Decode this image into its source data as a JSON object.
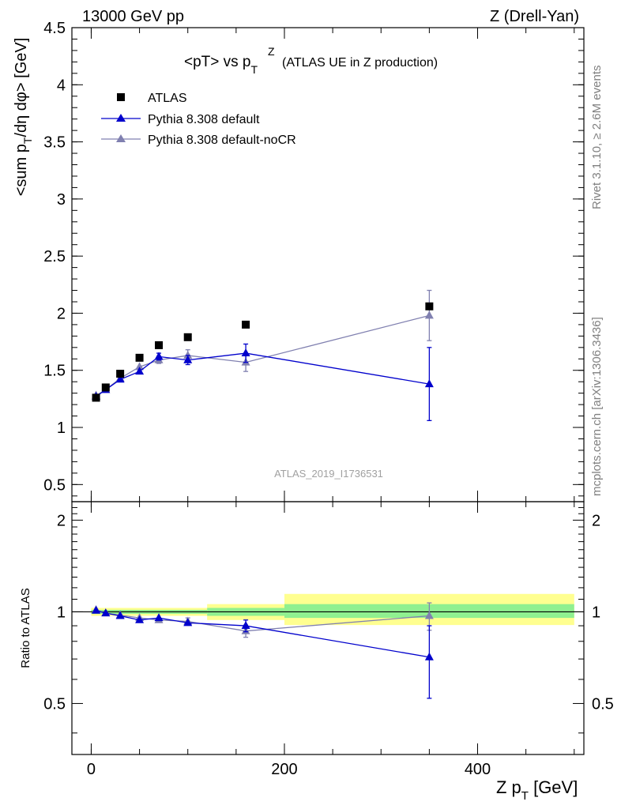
{
  "header": {
    "left": "13000 GeV pp",
    "right": "Z (Drell-Yan)"
  },
  "plot_title": {
    "main": "<pT> vs p",
    "sup": "Z",
    "sub": "T",
    "suffix": "(ATLAS UE in Z production)"
  },
  "side_labels": {
    "rivet": "Rivet 3.1.10, ≥ 2.6M events",
    "mcplots": "mcplots.cern.ch [arXiv:1306.3436]"
  },
  "watermark": "ATLAS_2019_I1736531",
  "colors": {
    "atlas": "#000000",
    "default": "#0000cc",
    "nocr": "#8080b0",
    "band_inner": "#90f090",
    "band_outer": "#ffff90"
  },
  "chart_data": [
    {
      "type": "scatter",
      "panel": "main",
      "ylabel": "<sum p_T/dη dφ> [GeV]",
      "xlim": [
        -20,
        510
      ],
      "ylim": [
        0.35,
        4.5
      ],
      "yticks": [
        0.5,
        1,
        1.5,
        2,
        2.5,
        3,
        3.5,
        4,
        4.5
      ],
      "yticklabels": [
        "0.5",
        "1",
        "1.5",
        "2",
        "2.5",
        "3",
        "3.5",
        "4",
        "4.5"
      ],
      "series": [
        {
          "name": "ATLAS",
          "marker": "square",
          "x": [
            5,
            15,
            30,
            50,
            70,
            100,
            160,
            350
          ],
          "y": [
            1.26,
            1.35,
            1.47,
            1.61,
            1.72,
            1.79,
            1.9,
            2.06
          ]
        },
        {
          "name": "Pythia 8.308 default",
          "marker": "triangle",
          "x": [
            5,
            15,
            30,
            50,
            70,
            100,
            160,
            350
          ],
          "y": [
            1.27,
            1.33,
            1.42,
            1.49,
            1.62,
            1.59,
            1.65,
            1.38
          ],
          "err": [
            0.01,
            0.01,
            0.015,
            0.02,
            0.03,
            0.04,
            0.08,
            0.32
          ]
        },
        {
          "name": "Pythia 8.308 default-noCR",
          "marker": "triangle",
          "x": [
            5,
            15,
            30,
            50,
            70,
            100,
            160,
            350
          ],
          "y": [
            1.28,
            1.33,
            1.43,
            1.53,
            1.59,
            1.63,
            1.57,
            1.98
          ],
          "err": [
            0.01,
            0.01,
            0.015,
            0.02,
            0.03,
            0.05,
            0.08,
            0.22
          ]
        }
      ]
    },
    {
      "type": "scatter",
      "panel": "ratio",
      "ylabel": "Ratio to ATLAS",
      "xlabel": "Z p_T [GeV]",
      "xlim": [
        -20,
        510
      ],
      "ylim": [
        0.34,
        2.3
      ],
      "xticks": [
        0,
        200,
        400
      ],
      "xticklabels": [
        "0",
        "200",
        "400"
      ],
      "yticks": [
        0.5,
        1,
        2
      ],
      "yticklabels": [
        "0.5",
        "1",
        "2"
      ],
      "bands": [
        {
          "x0": 0,
          "x1": 120,
          "inner": [
            0.985,
            1.015
          ],
          "outer": [
            0.97,
            1.03
          ]
        },
        {
          "x0": 120,
          "x1": 200,
          "inner": [
            0.97,
            1.03
          ],
          "outer": [
            0.94,
            1.06
          ]
        },
        {
          "x0": 200,
          "x1": 500,
          "inner": [
            0.955,
            1.06
          ],
          "outer": [
            0.905,
            1.145
          ]
        }
      ],
      "series": [
        {
          "name": "Pythia 8.308 default",
          "x": [
            5,
            15,
            30,
            50,
            70,
            100,
            160,
            350
          ],
          "y": [
            1.01,
            0.99,
            0.97,
            0.94,
            0.955,
            0.92,
            0.9,
            0.71
          ],
          "err": [
            0.01,
            0.01,
            0.01,
            0.01,
            0.015,
            0.02,
            0.04,
            0.19
          ]
        },
        {
          "name": "Pythia 8.308 default-noCR",
          "x": [
            5,
            15,
            30,
            50,
            70,
            100,
            160,
            350
          ],
          "y": [
            1.015,
            0.99,
            0.975,
            0.955,
            0.94,
            0.93,
            0.865,
            0.97
          ],
          "err": [
            0.01,
            0.01,
            0.01,
            0.01,
            0.015,
            0.025,
            0.04,
            0.1
          ]
        }
      ]
    }
  ]
}
